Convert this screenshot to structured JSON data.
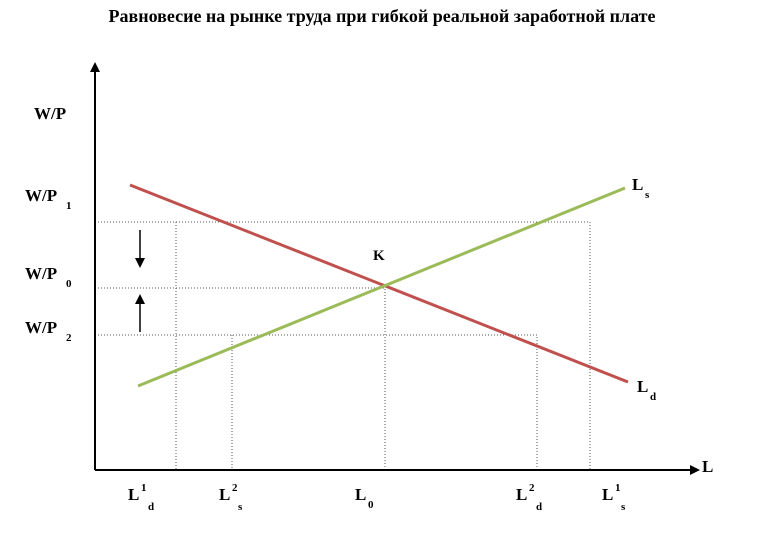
{
  "title": "Равновесие на рынке труда при гибкой реальной заработной плате",
  "axes": {
    "y_label": "W/P",
    "x_label": "L"
  },
  "y_levels": [
    {
      "base": "W/P",
      "sub": "1"
    },
    {
      "base": "W/P",
      "sub": "0"
    },
    {
      "base": "W/P",
      "sub": "2"
    }
  ],
  "x_points": [
    {
      "base": "L",
      "sup": "1",
      "sub": "d"
    },
    {
      "base": "L",
      "sup": "2",
      "sub": "s"
    },
    {
      "base": "L",
      "sub": "0"
    },
    {
      "base": "L",
      "sup": "2",
      "sub": "d"
    },
    {
      "base": "L",
      "sup": "1",
      "sub": "s"
    }
  ],
  "curves": [
    {
      "base": "L",
      "sub": "s"
    },
    {
      "base": "L",
      "sub": "d"
    }
  ],
  "equilibrium": "K"
}
